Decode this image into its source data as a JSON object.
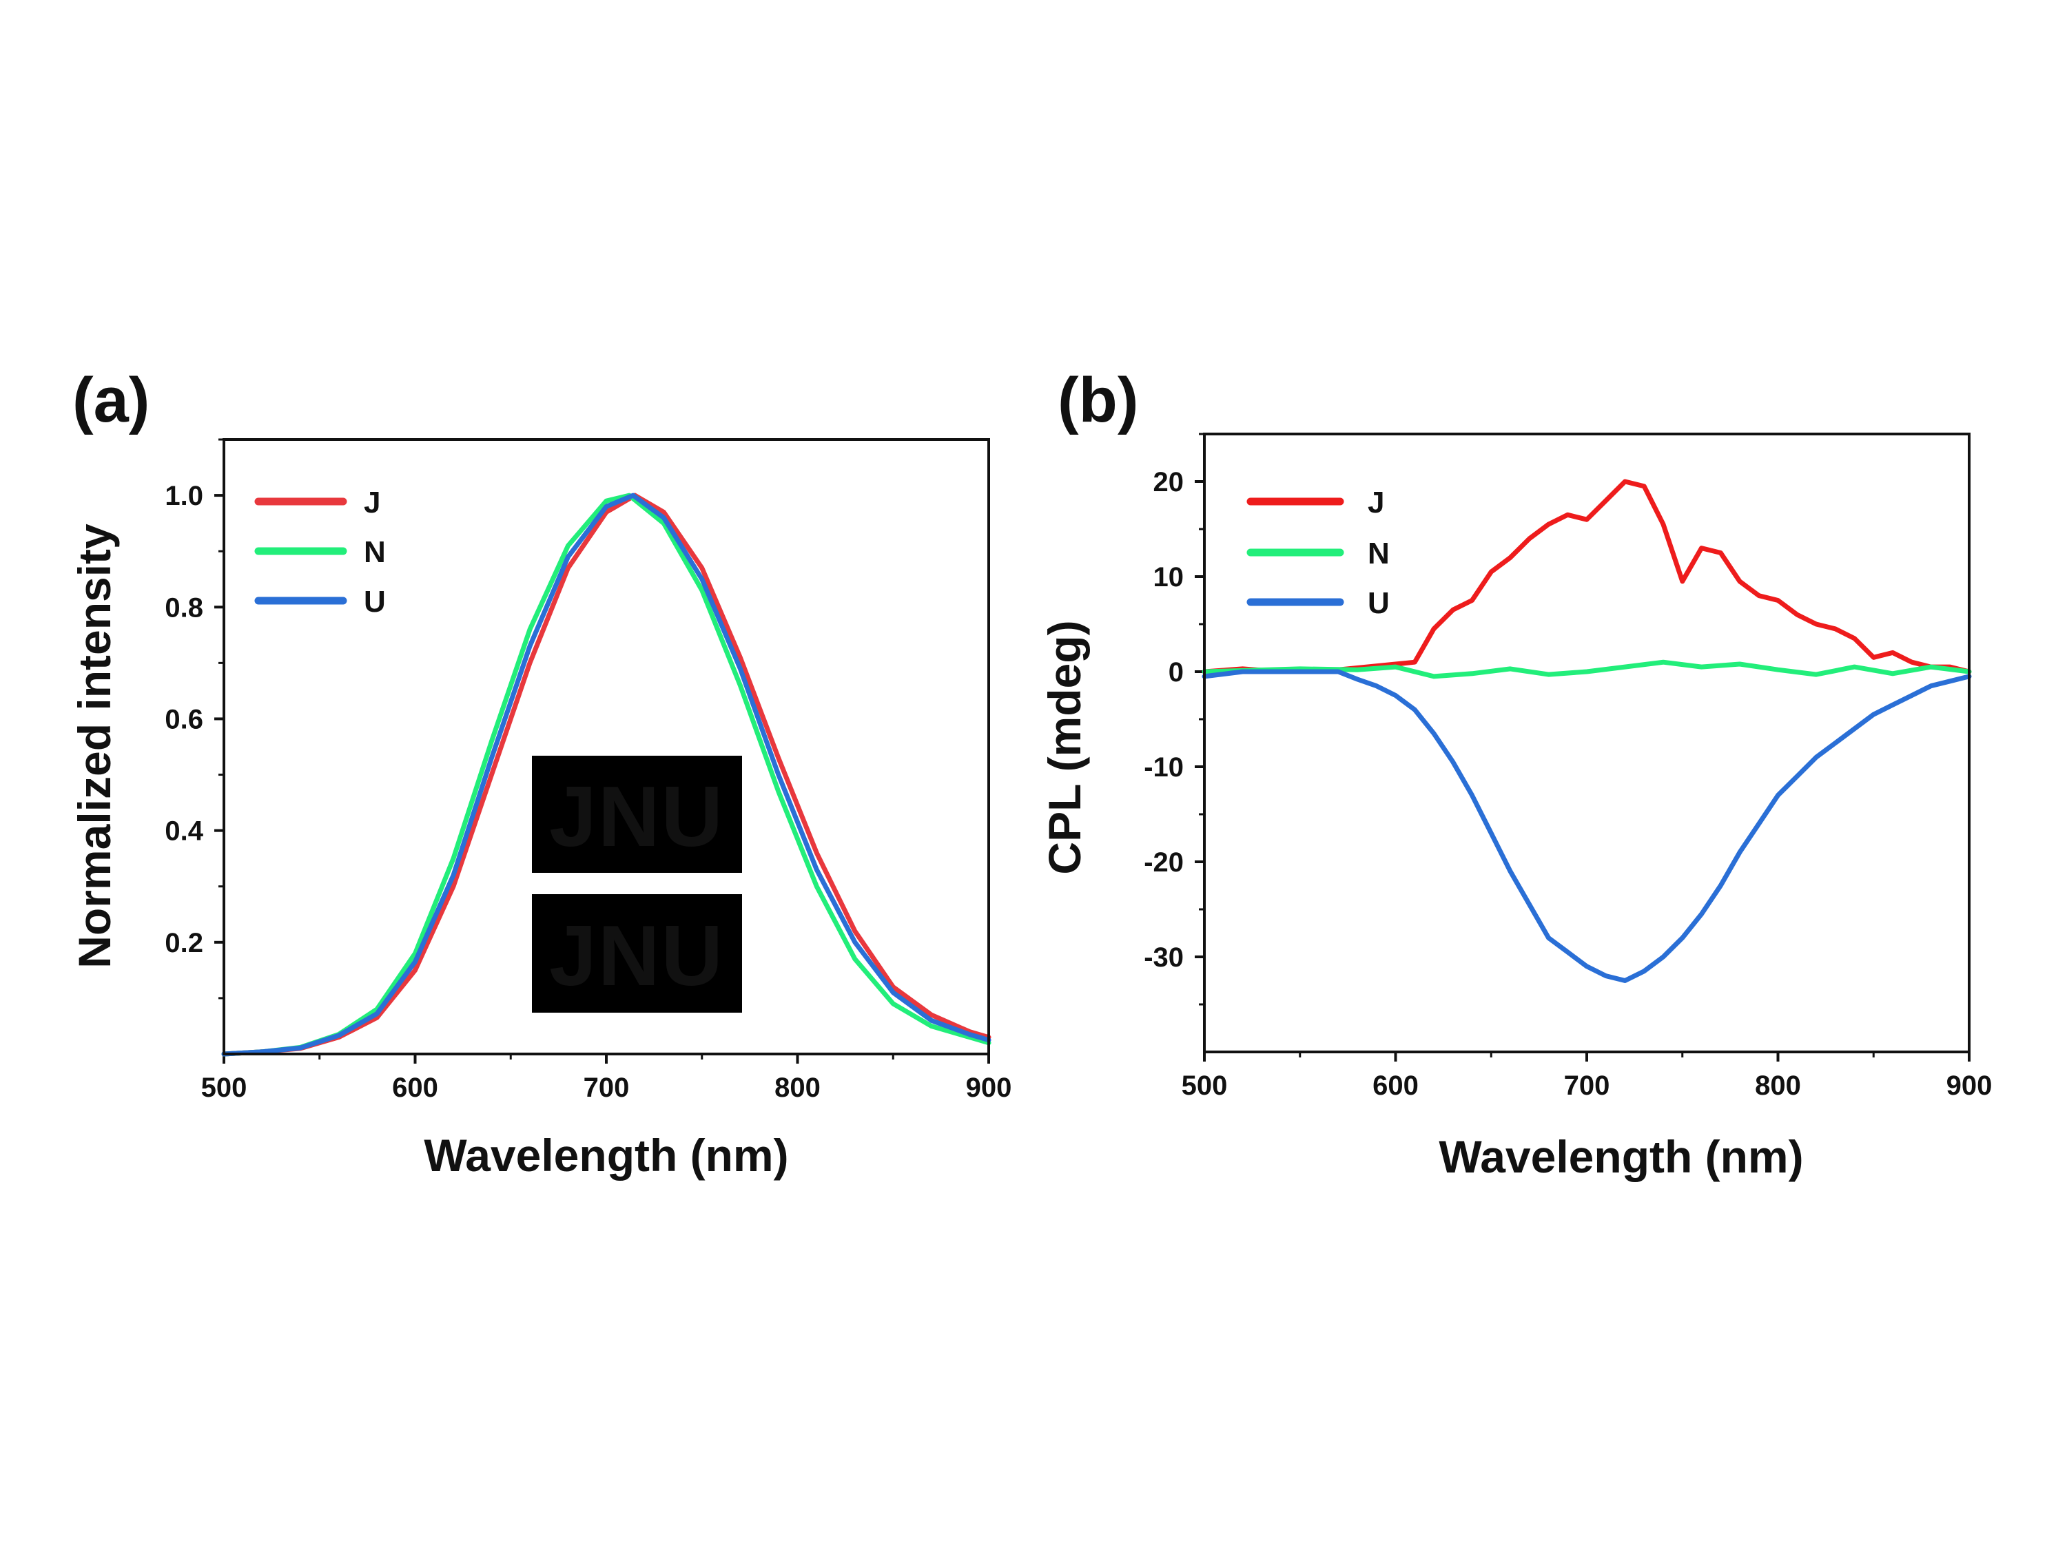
{
  "figure": {
    "background": "#ffffff"
  },
  "chart_data": [
    {
      "id": "a",
      "panel_label": "(a)",
      "type": "line",
      "xlabel": "Wavelength (nm)",
      "ylabel": "Normalized intensity",
      "xlim": [
        500,
        900
      ],
      "ylim": [
        0,
        1.1
      ],
      "xticks": [
        500,
        600,
        700,
        800,
        900
      ],
      "xtick_labels": [
        "500",
        "600",
        "700",
        "800",
        "900"
      ],
      "yticks": [
        0.2,
        0.4,
        0.6,
        0.8,
        1.0
      ],
      "ytick_labels": [
        "0.2",
        "0.4",
        "0.6",
        "0.8",
        "1.0"
      ],
      "grid": false,
      "legend_position": "top-left",
      "series": [
        {
          "name": "J",
          "color": "#e8383d",
          "x": [
            500,
            520,
            540,
            560,
            580,
            600,
            620,
            640,
            660,
            680,
            700,
            715,
            730,
            750,
            770,
            790,
            810,
            830,
            850,
            870,
            890,
            900
          ],
          "y": [
            0.0,
            0.004,
            0.01,
            0.03,
            0.065,
            0.15,
            0.3,
            0.5,
            0.7,
            0.87,
            0.97,
            1.0,
            0.97,
            0.87,
            0.71,
            0.53,
            0.36,
            0.22,
            0.12,
            0.07,
            0.04,
            0.03
          ]
        },
        {
          "name": "N",
          "color": "#22ee7a",
          "x": [
            500,
            520,
            540,
            560,
            580,
            600,
            620,
            640,
            660,
            680,
            700,
            712,
            730,
            750,
            770,
            790,
            810,
            830,
            850,
            870,
            890,
            900
          ],
          "y": [
            0.0,
            0.004,
            0.012,
            0.035,
            0.08,
            0.18,
            0.35,
            0.56,
            0.76,
            0.91,
            0.99,
            1.0,
            0.95,
            0.83,
            0.66,
            0.47,
            0.3,
            0.17,
            0.09,
            0.05,
            0.03,
            0.02
          ]
        },
        {
          "name": "U",
          "color": "#2a6fd6",
          "x": [
            500,
            520,
            540,
            560,
            580,
            600,
            620,
            640,
            660,
            680,
            700,
            714,
            730,
            750,
            770,
            790,
            810,
            830,
            850,
            870,
            890,
            900
          ],
          "y": [
            0.0,
            0.004,
            0.011,
            0.033,
            0.072,
            0.165,
            0.32,
            0.53,
            0.73,
            0.89,
            0.98,
            1.0,
            0.96,
            0.85,
            0.69,
            0.5,
            0.33,
            0.2,
            0.11,
            0.06,
            0.035,
            0.025
          ]
        }
      ],
      "inset": {
        "photos": [
          {
            "text": "JNU",
            "text_color": "#e6e4dc",
            "background": "#000000"
          },
          {
            "text": "JNU",
            "text_color": "#e23a6e",
            "background": "#000000"
          }
        ]
      }
    },
    {
      "id": "b",
      "panel_label": "(b)",
      "type": "line",
      "xlabel": "Wavelength (nm)",
      "ylabel": "CPL (mdeg)",
      "xlim": [
        500,
        900
      ],
      "ylim": [
        -40,
        25
      ],
      "xticks": [
        500,
        600,
        700,
        800,
        900
      ],
      "xtick_labels": [
        "500",
        "600",
        "700",
        "800",
        "900"
      ],
      "yticks": [
        -30,
        -20,
        -10,
        0,
        10,
        20
      ],
      "ytick_labels": [
        "-30",
        "-20",
        "-10",
        "0",
        "10",
        "20"
      ],
      "grid": false,
      "legend_position": "top-left",
      "series": [
        {
          "name": "J",
          "color": "#ee1c1c",
          "x": [
            500,
            520,
            540,
            560,
            580,
            600,
            610,
            620,
            630,
            640,
            650,
            660,
            670,
            680,
            690,
            700,
            710,
            720,
            730,
            740,
            750,
            760,
            770,
            780,
            790,
            800,
            810,
            820,
            830,
            840,
            850,
            860,
            870,
            880,
            890,
            900
          ],
          "y": [
            0.0,
            0.3,
            0.0,
            0.0,
            0.4,
            0.8,
            1.0,
            4.5,
            6.5,
            7.5,
            10.5,
            12.0,
            14.0,
            15.5,
            16.5,
            16.0,
            18.0,
            20.0,
            19.5,
            15.5,
            9.5,
            13.0,
            12.5,
            9.5,
            8.0,
            7.5,
            6.0,
            5.0,
            4.5,
            3.5,
            1.5,
            2.0,
            1.0,
            0.5,
            0.5,
            0.0
          ]
        },
        {
          "name": "N",
          "color": "#22ee7a",
          "x": [
            500,
            550,
            580,
            600,
            620,
            640,
            660,
            680,
            700,
            720,
            740,
            760,
            780,
            800,
            820,
            840,
            860,
            880,
            900
          ],
          "y": [
            0.0,
            0.3,
            0.2,
            0.5,
            -0.5,
            -0.2,
            0.3,
            -0.3,
            0.0,
            0.5,
            1.0,
            0.5,
            0.8,
            0.2,
            -0.3,
            0.5,
            -0.2,
            0.5,
            0.0
          ]
        },
        {
          "name": "U",
          "color": "#2a6fd6",
          "x": [
            500,
            520,
            540,
            560,
            570,
            580,
            590,
            600,
            610,
            620,
            630,
            640,
            650,
            660,
            670,
            680,
            690,
            700,
            710,
            720,
            730,
            740,
            750,
            760,
            770,
            780,
            790,
            800,
            810,
            820,
            830,
            840,
            850,
            860,
            870,
            880,
            890,
            900
          ],
          "y": [
            -0.5,
            0.0,
            0.0,
            0.0,
            0.0,
            -0.8,
            -1.5,
            -2.5,
            -4.0,
            -6.5,
            -9.5,
            -13.0,
            -17.0,
            -21.0,
            -24.5,
            -28.0,
            -29.5,
            -31.0,
            -32.0,
            -32.5,
            -31.5,
            -30.0,
            -28.0,
            -25.5,
            -22.5,
            -19.0,
            -16.0,
            -13.0,
            -11.0,
            -9.0,
            -7.5,
            -6.0,
            -4.5,
            -3.5,
            -2.5,
            -1.5,
            -1.0,
            -0.5
          ]
        }
      ]
    }
  ]
}
